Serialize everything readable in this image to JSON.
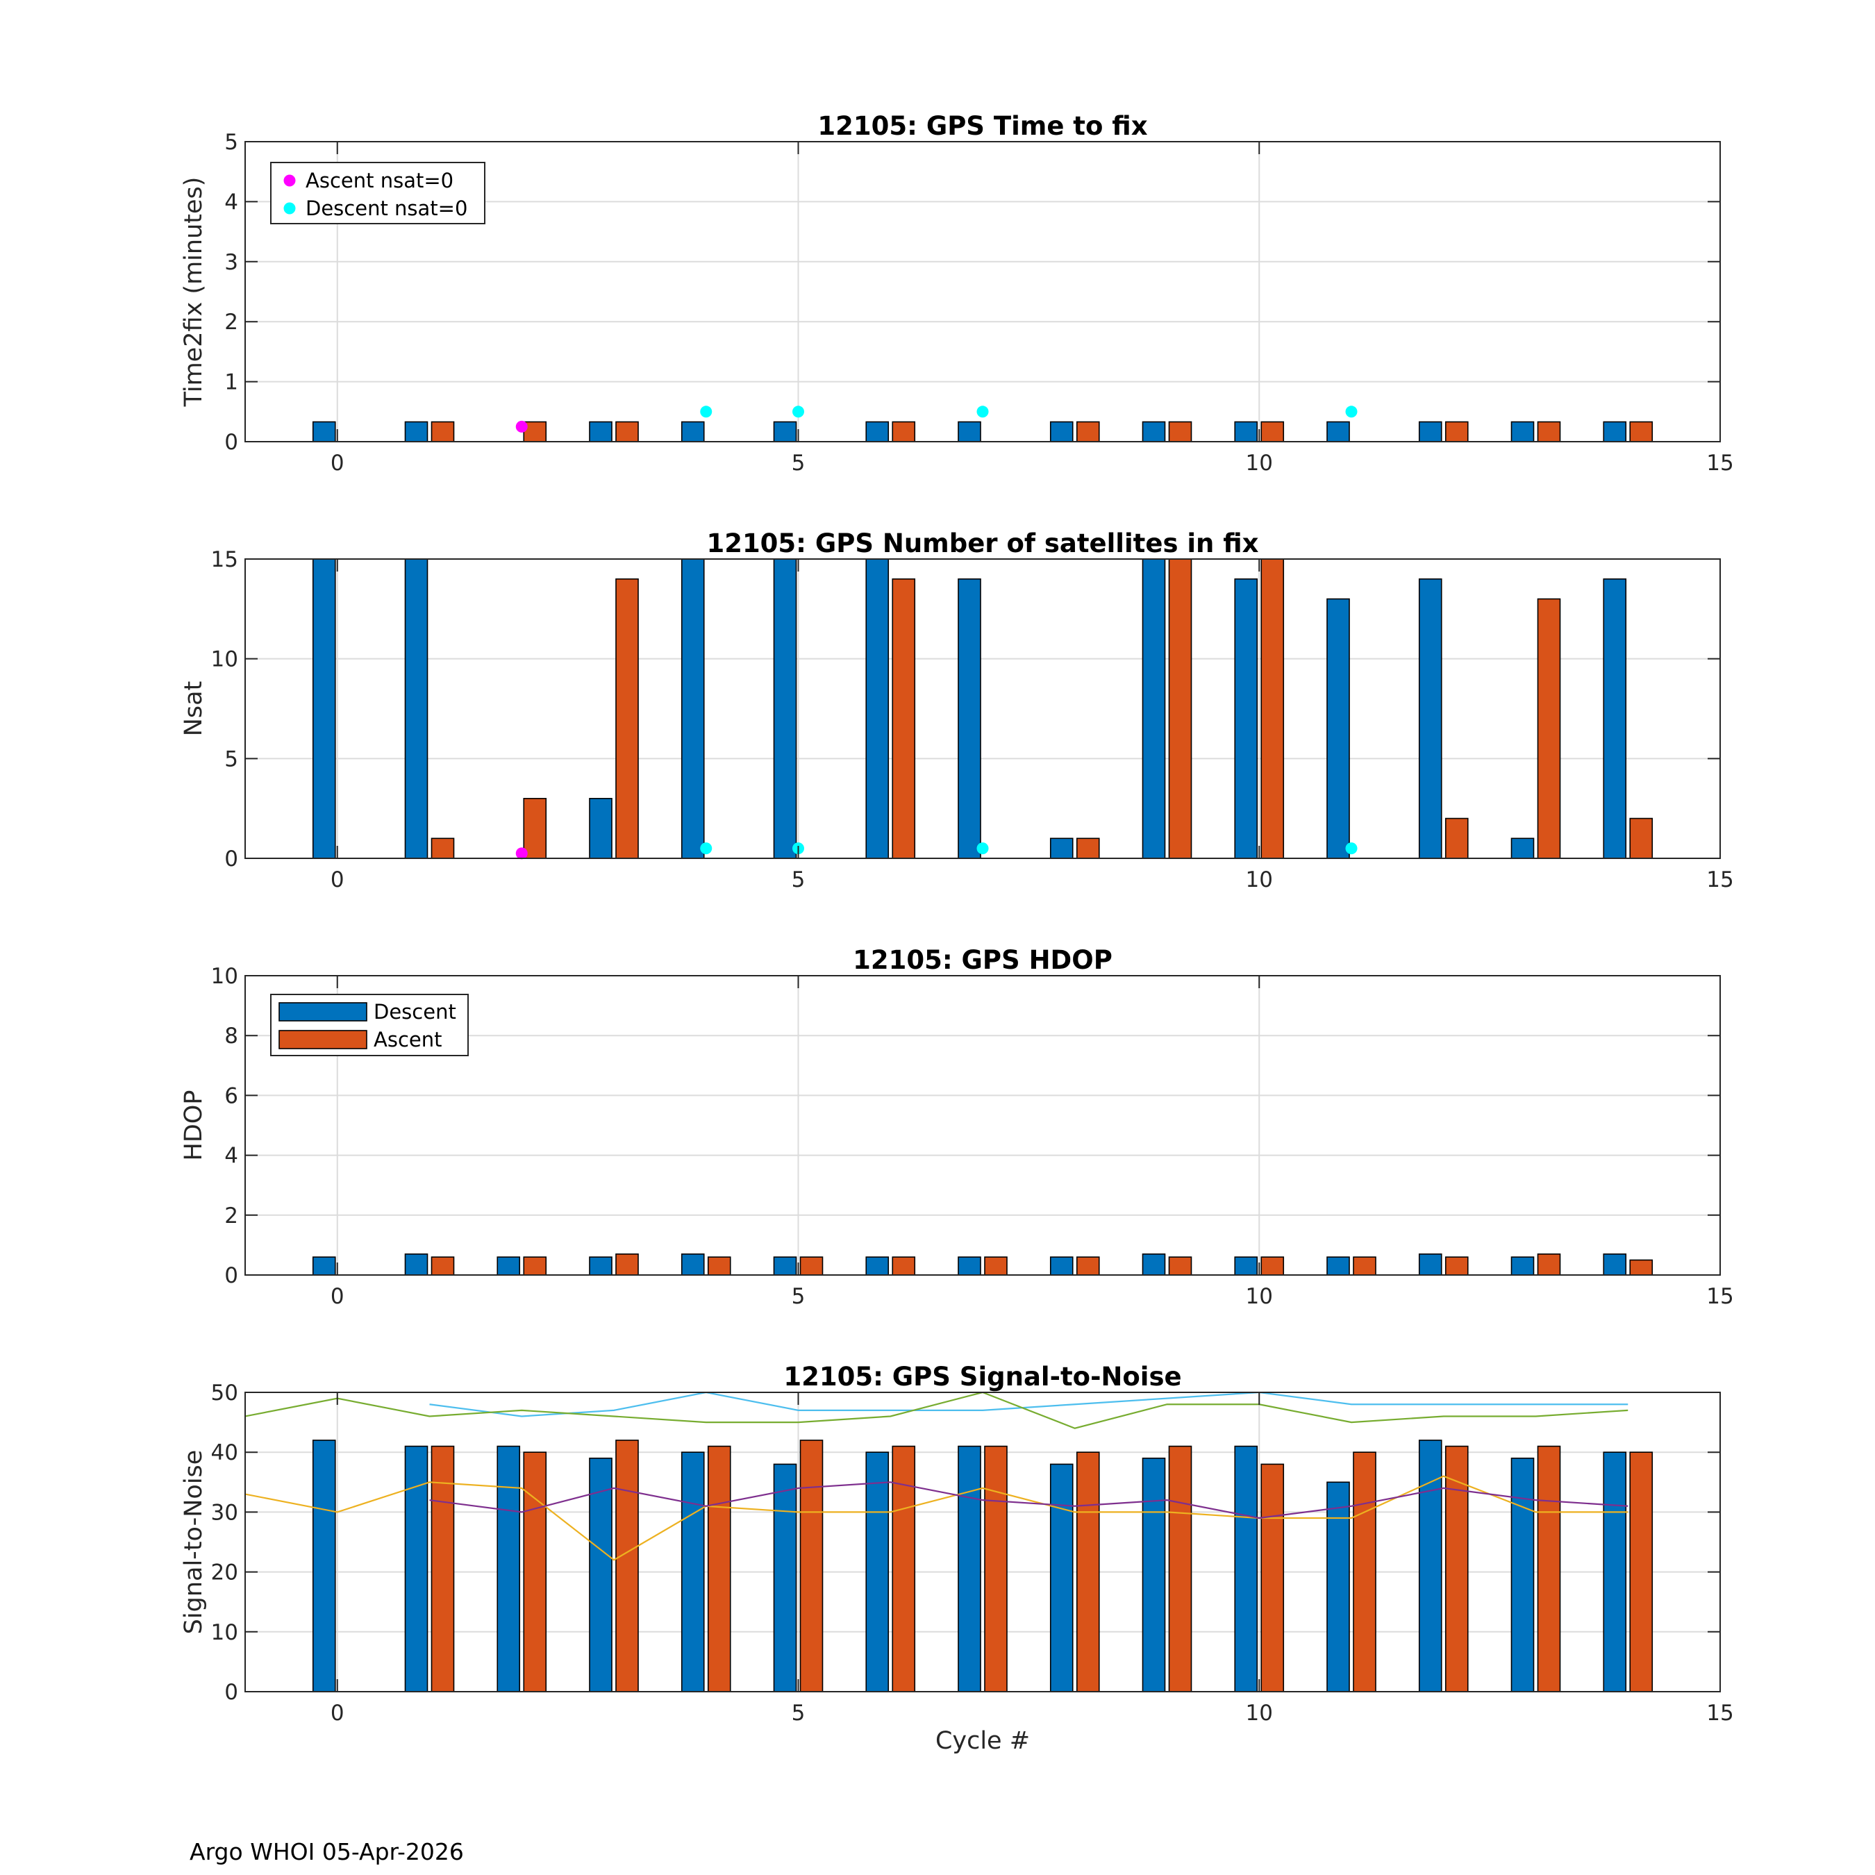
{
  "footer": "Argo WHOI 05-Apr-2026",
  "colors": {
    "descent": "#0072BD",
    "ascent": "#D95319",
    "ascent_nsat0": "#FF00FF",
    "descent_nsat0": "#00FFFF"
  },
  "chart_data": [
    {
      "type": "bar",
      "title": "12105: GPS Time to fix",
      "xlabel": "",
      "ylabel": "Time2fix (minutes)",
      "xlim": [
        -1,
        15
      ],
      "ylim": [
        0,
        5
      ],
      "xticks": [
        0,
        5,
        10,
        15
      ],
      "yticks": [
        0,
        1,
        2,
        3,
        4,
        5
      ],
      "grid": true,
      "x": [
        0,
        1,
        2,
        3,
        4,
        5,
        6,
        7,
        8,
        9,
        10,
        11,
        12,
        13,
        14
      ],
      "series": [
        {
          "name": "Descent",
          "values": [
            0.33,
            0.33,
            null,
            0.33,
            0.33,
            0.33,
            0.33,
            0.33,
            0.33,
            0.33,
            0.33,
            0.33,
            0.33,
            0.33,
            0.33
          ]
        },
        {
          "name": "Ascent",
          "values": [
            null,
            0.33,
            0.33,
            0.33,
            null,
            null,
            0.33,
            null,
            0.33,
            0.33,
            0.33,
            null,
            0.33,
            0.33,
            0.33
          ]
        }
      ],
      "markers": [
        {
          "name": "Ascent nsat=0",
          "color_key": "ascent_nsat0",
          "points": [
            [
              2,
              0.25
            ]
          ]
        },
        {
          "name": "Descent nsat=0",
          "color_key": "descent_nsat0",
          "points": [
            [
              4,
              0.5
            ],
            [
              5,
              0.5
            ],
            [
              7,
              0.5
            ],
            [
              11,
              0.5
            ]
          ]
        }
      ],
      "legend": {
        "placement": "top-left",
        "kind": "markers"
      }
    },
    {
      "type": "bar",
      "title": "12105: GPS Number of satellites in fix",
      "xlabel": "",
      "ylabel": "Nsat",
      "xlim": [
        -1,
        15
      ],
      "ylim": [
        0,
        15
      ],
      "xticks": [
        0,
        5,
        10,
        15
      ],
      "yticks": [
        0,
        5,
        10,
        15
      ],
      "grid": true,
      "x": [
        0,
        1,
        2,
        3,
        4,
        5,
        6,
        7,
        8,
        9,
        10,
        11,
        12,
        13,
        14
      ],
      "series": [
        {
          "name": "Descent",
          "values": [
            15,
            15,
            null,
            3,
            15,
            15,
            15,
            14,
            1,
            15,
            14,
            13,
            14,
            1,
            14
          ]
        },
        {
          "name": "Ascent",
          "values": [
            null,
            1,
            3,
            14,
            null,
            null,
            14,
            null,
            1,
            15,
            15,
            null,
            2,
            13,
            2
          ]
        }
      ],
      "markers": [
        {
          "name": "Ascent nsat=0",
          "color_key": "ascent_nsat0",
          "points": [
            [
              2,
              0.25
            ]
          ]
        },
        {
          "name": "Descent nsat=0",
          "color_key": "descent_nsat0",
          "points": [
            [
              4,
              0.5
            ],
            [
              5,
              0.5
            ],
            [
              7,
              0.5
            ],
            [
              11,
              0.5
            ]
          ]
        }
      ],
      "legend": null
    },
    {
      "type": "bar",
      "title": "12105: GPS HDOP",
      "xlabel": "",
      "ylabel": "HDOP",
      "xlim": [
        -1,
        15
      ],
      "ylim": [
        0,
        10
      ],
      "xticks": [
        0,
        5,
        10,
        15
      ],
      "yticks": [
        0,
        2,
        4,
        6,
        8,
        10
      ],
      "grid": true,
      "x": [
        0,
        1,
        2,
        3,
        4,
        5,
        6,
        7,
        8,
        9,
        10,
        11,
        12,
        13,
        14
      ],
      "series": [
        {
          "name": "Descent",
          "values": [
            0.6,
            0.7,
            0.6,
            0.6,
            0.7,
            0.6,
            0.6,
            0.6,
            0.6,
            0.7,
            0.6,
            0.6,
            0.7,
            0.6,
            0.7
          ]
        },
        {
          "name": "Ascent",
          "values": [
            null,
            0.6,
            0.6,
            0.7,
            0.6,
            0.6,
            0.6,
            0.6,
            0.6,
            0.6,
            0.6,
            0.6,
            0.6,
            0.7,
            0.5
          ]
        }
      ],
      "markers": [],
      "legend": {
        "placement": "top-left",
        "kind": "bars"
      }
    },
    {
      "type": "bar",
      "title": "12105: GPS Signal-to-Noise",
      "xlabel": "Cycle #",
      "ylabel": "Signal-to-Noise",
      "xlim": [
        -1,
        15
      ],
      "ylim": [
        0,
        50
      ],
      "xticks": [
        0,
        5,
        10,
        15
      ],
      "yticks": [
        0,
        10,
        20,
        30,
        40,
        50
      ],
      "grid": true,
      "x": [
        0,
        1,
        2,
        3,
        4,
        5,
        6,
        7,
        8,
        9,
        10,
        11,
        12,
        13,
        14
      ],
      "series": [
        {
          "name": "Descent",
          "values": [
            42,
            41,
            41,
            39,
            40,
            38,
            40,
            41,
            38,
            39,
            41,
            35,
            42,
            39,
            40
          ]
        },
        {
          "name": "Ascent",
          "values": [
            null,
            41,
            40,
            42,
            41,
            42,
            41,
            41,
            40,
            41,
            38,
            40,
            41,
            41,
            40
          ]
        }
      ],
      "lines": [
        {
          "color": "#4DBEEE",
          "points": [
            [
              1,
              48
            ],
            [
              2,
              46
            ],
            [
              3,
              47
            ],
            [
              4,
              50
            ],
            [
              5,
              47
            ],
            [
              6,
              47
            ],
            [
              7,
              47
            ],
            [
              8,
              48
            ],
            [
              9,
              49
            ],
            [
              10,
              50
            ],
            [
              11,
              48
            ],
            [
              12,
              48
            ],
            [
              13,
              48
            ],
            [
              14,
              48
            ]
          ]
        },
        {
          "color": "#77AC30",
          "points": [
            [
              -1,
              46
            ],
            [
              0,
              49
            ],
            [
              1,
              46
            ],
            [
              2,
              47
            ],
            [
              3,
              46
            ],
            [
              4,
              45
            ],
            [
              5,
              45
            ],
            [
              6,
              46
            ],
            [
              7,
              50
            ],
            [
              8,
              44
            ],
            [
              9,
              48
            ],
            [
              10,
              48
            ],
            [
              11,
              45
            ],
            [
              12,
              46
            ],
            [
              13,
              46
            ],
            [
              14,
              47
            ]
          ]
        },
        {
          "color": "#EDB120",
          "points": [
            [
              -1,
              33
            ],
            [
              0,
              30
            ],
            [
              1,
              35
            ],
            [
              2,
              34
            ],
            [
              3,
              22
            ],
            [
              4,
              31
            ],
            [
              5,
              30
            ],
            [
              6,
              30
            ],
            [
              7,
              34
            ],
            [
              8,
              30
            ],
            [
              9,
              30
            ],
            [
              10,
              29
            ],
            [
              11,
              29
            ],
            [
              12,
              36
            ],
            [
              13,
              30
            ],
            [
              14,
              30
            ]
          ]
        },
        {
          "color": "#7E2F8E",
          "points": [
            [
              1,
              32
            ],
            [
              2,
              30
            ],
            [
              3,
              34
            ],
            [
              4,
              31
            ],
            [
              5,
              34
            ],
            [
              6,
              35
            ],
            [
              7,
              32
            ],
            [
              8,
              31
            ],
            [
              9,
              32
            ],
            [
              10,
              29
            ],
            [
              11,
              31
            ],
            [
              12,
              34
            ],
            [
              13,
              32
            ],
            [
              14,
              31
            ]
          ]
        }
      ],
      "markers": [],
      "legend": null
    }
  ]
}
